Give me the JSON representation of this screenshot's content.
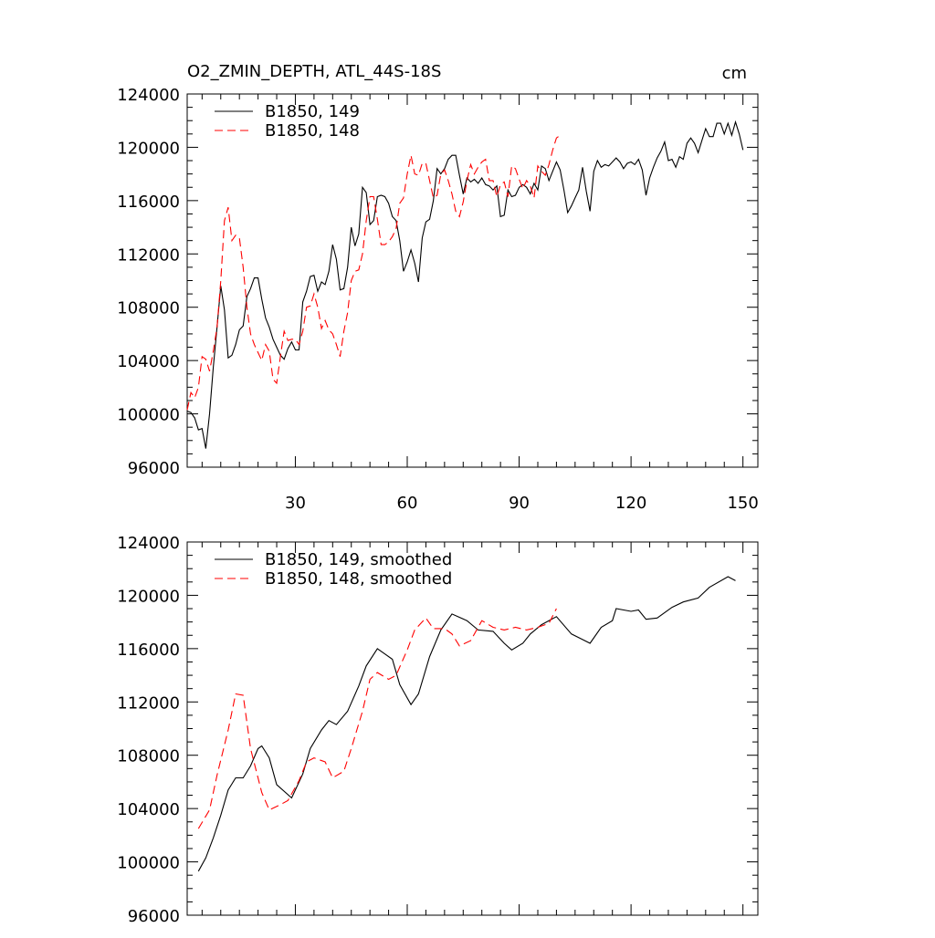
{
  "chart_data": [
    {
      "type": "line",
      "title": "O2_ZMIN_DEPTH, ATL_44S-18S",
      "units": "cm",
      "xlim": [
        1,
        154
      ],
      "xticks": [
        30,
        60,
        90,
        120,
        150
      ],
      "ylim": [
        96000,
        124000
      ],
      "yticks": [
        96000,
        100000,
        104000,
        108000,
        112000,
        116000,
        120000,
        124000
      ],
      "xtick_labels": true,
      "series": [
        {
          "name": "B1850, 149",
          "color": "#000000",
          "dash": false,
          "x": [
            1,
            2,
            3,
            4,
            5,
            6,
            7,
            8,
            9,
            10,
            11,
            12,
            13,
            14,
            15,
            16,
            17,
            18,
            19,
            20,
            21,
            22,
            23,
            24,
            25,
            26,
            27,
            28,
            29,
            30,
            31,
            32,
            33,
            34,
            35,
            36,
            37,
            38,
            39,
            40,
            41,
            42,
            43,
            44,
            45,
            46,
            47,
            48,
            49,
            50,
            51,
            52,
            53,
            54,
            55,
            56,
            57,
            58,
            59,
            60,
            61,
            62,
            63,
            64,
            65,
            66,
            67,
            68,
            69,
            70,
            71,
            72,
            73,
            74,
            75,
            76,
            77,
            78,
            79,
            80,
            81,
            82,
            83,
            84,
            85,
            86,
            87,
            88,
            89,
            90,
            91,
            92,
            93,
            94,
            95,
            96,
            97,
            98,
            99,
            100,
            101,
            102,
            103,
            104,
            105,
            106,
            107,
            108,
            109,
            110,
            111,
            112,
            113,
            114,
            115,
            116,
            117,
            118,
            119,
            120,
            121,
            122,
            123,
            124,
            125,
            126,
            127,
            128,
            129,
            130,
            131,
            132,
            133,
            134,
            135,
            136,
            137,
            138,
            139,
            140,
            141,
            142,
            143,
            144,
            145,
            146,
            147,
            148,
            149,
            150
          ],
          "values": [
            100200,
            100100,
            99700,
            98800,
            98900,
            97400,
            100000,
            103500,
            106500,
            109600,
            107800,
            104200,
            104400,
            105200,
            106300,
            106600,
            108800,
            109400,
            110200,
            110200,
            108600,
            107200,
            106500,
            105600,
            105000,
            104400,
            104100,
            104900,
            105400,
            104800,
            104800,
            108400,
            109200,
            110300,
            110400,
            109200,
            109900,
            109700,
            110700,
            112700,
            111600,
            109300,
            109400,
            111000,
            114000,
            112600,
            113500,
            117000,
            116600,
            114200,
            114500,
            116300,
            116400,
            116300,
            115800,
            114800,
            114500,
            113000,
            110700,
            111400,
            112300,
            111300,
            109900,
            113200,
            114400,
            114600,
            116000,
            118400,
            118000,
            118400,
            119100,
            119400,
            119400,
            117900,
            116500,
            117700,
            117400,
            117600,
            117300,
            117700,
            117200,
            117100,
            116800,
            117100,
            114800,
            114900,
            116800,
            116300,
            116400,
            117000,
            117200,
            117000,
            116500,
            117300,
            116800,
            118600,
            118400,
            117500,
            118200,
            118900,
            118300,
            116800,
            115100,
            115600,
            116200,
            116800,
            118500,
            116700,
            115200,
            118200,
            119000,
            118500,
            118700,
            118600,
            118900,
            119200,
            118900,
            118400,
            118800,
            118900,
            118700,
            119100,
            118300,
            116400,
            117700,
            118500,
            119200,
            119700,
            120400,
            119000,
            119100,
            118500,
            119300,
            119100,
            120300,
            120700,
            120300,
            119600,
            120500,
            121400,
            120800,
            120800,
            121800,
            121800,
            121000,
            121800,
            120900,
            121900,
            121000,
            119800
          ]
        },
        {
          "name": "B1850, 148",
          "color": "#ff0000",
          "dash": true,
          "x": [
            1,
            2,
            3,
            4,
            5,
            6,
            7,
            8,
            9,
            10,
            11,
            12,
            13,
            14,
            15,
            16,
            17,
            18,
            19,
            20,
            21,
            22,
            23,
            24,
            25,
            26,
            27,
            28,
            29,
            30,
            31,
            32,
            33,
            34,
            35,
            36,
            37,
            38,
            39,
            40,
            41,
            42,
            43,
            44,
            45,
            46,
            47,
            48,
            49,
            50,
            51,
            52,
            53,
            54,
            55,
            56,
            57,
            58,
            59,
            60,
            61,
            62,
            63,
            64,
            65,
            66,
            67,
            68,
            69,
            70,
            71,
            72,
            73,
            74,
            75,
            76,
            77,
            78,
            79,
            80,
            81,
            82,
            83,
            84,
            85,
            86,
            87,
            88,
            89,
            90,
            91,
            92,
            93,
            94,
            95,
            96,
            97,
            98,
            99,
            100,
            101
          ],
          "values": [
            100300,
            101600,
            101200,
            102000,
            104300,
            104100,
            103200,
            104700,
            106500,
            110000,
            114500,
            115500,
            113000,
            113400,
            113200,
            111000,
            108000,
            106000,
            105200,
            104600,
            104000,
            105200,
            104700,
            102600,
            102300,
            104300,
            106200,
            105500,
            105600,
            105600,
            105200,
            106200,
            108000,
            108100,
            109000,
            108000,
            106400,
            107000,
            106300,
            106000,
            105200,
            104300,
            106200,
            107600,
            110000,
            110700,
            110800,
            112000,
            114500,
            116300,
            116300,
            114600,
            112700,
            112700,
            112900,
            113300,
            113900,
            115800,
            116200,
            118000,
            119400,
            118000,
            117900,
            118800,
            118800,
            117500,
            116200,
            116400,
            118000,
            118300,
            117500,
            116500,
            115200,
            114800,
            115900,
            117500,
            118700,
            118000,
            118500,
            118900,
            119100,
            117500,
            117500,
            116300,
            117200,
            117400,
            116300,
            118600,
            118400,
            117600,
            116900,
            117500,
            117100,
            116200,
            118600,
            118200,
            117900,
            118700,
            119800,
            120700,
            120900
          ]
        }
      ]
    },
    {
      "type": "line",
      "xlim": [
        1,
        154
      ],
      "xticks": [
        30,
        60,
        90,
        120,
        150
      ],
      "ylim": [
        96000,
        124000
      ],
      "yticks": [
        96000,
        100000,
        104000,
        108000,
        112000,
        116000,
        120000,
        124000
      ],
      "xtick_labels": false,
      "series": [
        {
          "name": "B1850, 149, smoothed",
          "color": "#000000",
          "dash": false,
          "x": [
            4,
            6,
            8,
            10,
            12,
            14,
            16,
            18,
            20,
            21,
            23,
            25,
            29,
            32,
            34,
            37,
            39,
            41,
            44,
            47,
            49,
            52,
            54,
            56,
            58,
            61,
            63,
            66,
            69,
            72,
            76,
            79,
            83,
            86,
            88,
            91,
            93,
            96,
            100,
            104,
            109,
            112,
            115,
            116,
            120,
            122,
            124,
            127,
            131,
            134,
            138,
            141,
            146,
            148
          ],
          "values": [
            99300,
            100300,
            101800,
            103500,
            105400,
            106300,
            106300,
            107200,
            108500,
            108700,
            107800,
            105800,
            104800,
            106600,
            108500,
            109900,
            110600,
            110300,
            111300,
            113200,
            114700,
            116000,
            115600,
            115200,
            113300,
            111800,
            112600,
            115400,
            117400,
            118600,
            118100,
            117400,
            117300,
            116400,
            115900,
            116400,
            117100,
            117800,
            118400,
            117100,
            116400,
            117600,
            118100,
            119000,
            118800,
            118900,
            118200,
            118300,
            119100,
            119500,
            119800,
            120600,
            121400,
            121100
          ]
        },
        {
          "name": "B1850, 148, smoothed",
          "color": "#ff0000",
          "dash": true,
          "x": [
            4,
            7,
            9,
            12,
            14,
            16,
            18,
            21,
            23,
            26,
            28,
            31,
            33,
            35,
            38,
            40,
            43,
            45,
            48,
            50,
            52,
            55,
            57,
            60,
            62,
            65,
            67,
            70,
            72,
            74,
            77,
            80,
            83,
            86,
            89,
            92,
            95,
            98,
            100
          ],
          "values": [
            102500,
            103900,
            106500,
            109900,
            112600,
            112500,
            108500,
            105200,
            103900,
            104300,
            104600,
            106100,
            107500,
            107800,
            107500,
            106300,
            106800,
            108500,
            111300,
            113700,
            114200,
            113700,
            114000,
            115900,
            117400,
            118300,
            117500,
            117500,
            117100,
            116200,
            116600,
            118100,
            117600,
            117400,
            117600,
            117400,
            117600,
            117900,
            119000
          ]
        }
      ]
    }
  ]
}
